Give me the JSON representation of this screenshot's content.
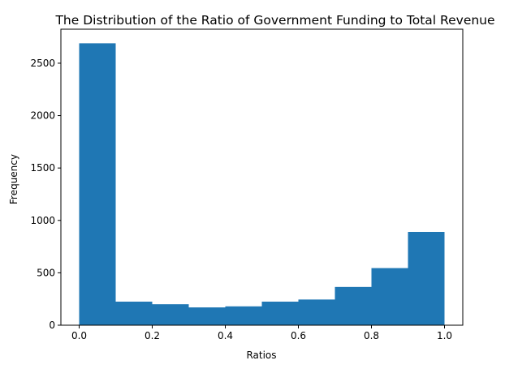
{
  "chart_data": {
    "type": "bar",
    "title": "The Distribution of the Ratio of Government Funding to Total Revenue",
    "xlabel": "Ratios",
    "ylabel": "Frequency",
    "bins": [
      {
        "x0": 0.0,
        "x1": 0.1,
        "count": 2690
      },
      {
        "x0": 0.1,
        "x1": 0.2,
        "count": 225
      },
      {
        "x0": 0.2,
        "x1": 0.3,
        "count": 200
      },
      {
        "x0": 0.3,
        "x1": 0.4,
        "count": 170
      },
      {
        "x0": 0.4,
        "x1": 0.5,
        "count": 180
      },
      {
        "x0": 0.5,
        "x1": 0.6,
        "count": 225
      },
      {
        "x0": 0.6,
        "x1": 0.7,
        "count": 245
      },
      {
        "x0": 0.7,
        "x1": 0.8,
        "count": 365
      },
      {
        "x0": 0.8,
        "x1": 0.9,
        "count": 545
      },
      {
        "x0": 0.9,
        "x1": 1.0,
        "count": 890
      }
    ],
    "xlim": [
      -0.05,
      1.05
    ],
    "ylim": [
      0,
      2824.5
    ],
    "xticks": [
      "0.0",
      "0.2",
      "0.4",
      "0.6",
      "0.8",
      "1.0"
    ],
    "xtick_values": [
      0.0,
      0.2,
      0.4,
      0.6,
      0.8,
      1.0
    ],
    "yticks": [
      "0",
      "500",
      "1000",
      "1500",
      "2000",
      "2500"
    ],
    "ytick_values": [
      0,
      500,
      1000,
      1500,
      2000,
      2500
    ],
    "bar_color": "#1f77b4",
    "grid": false,
    "legend": "none"
  }
}
